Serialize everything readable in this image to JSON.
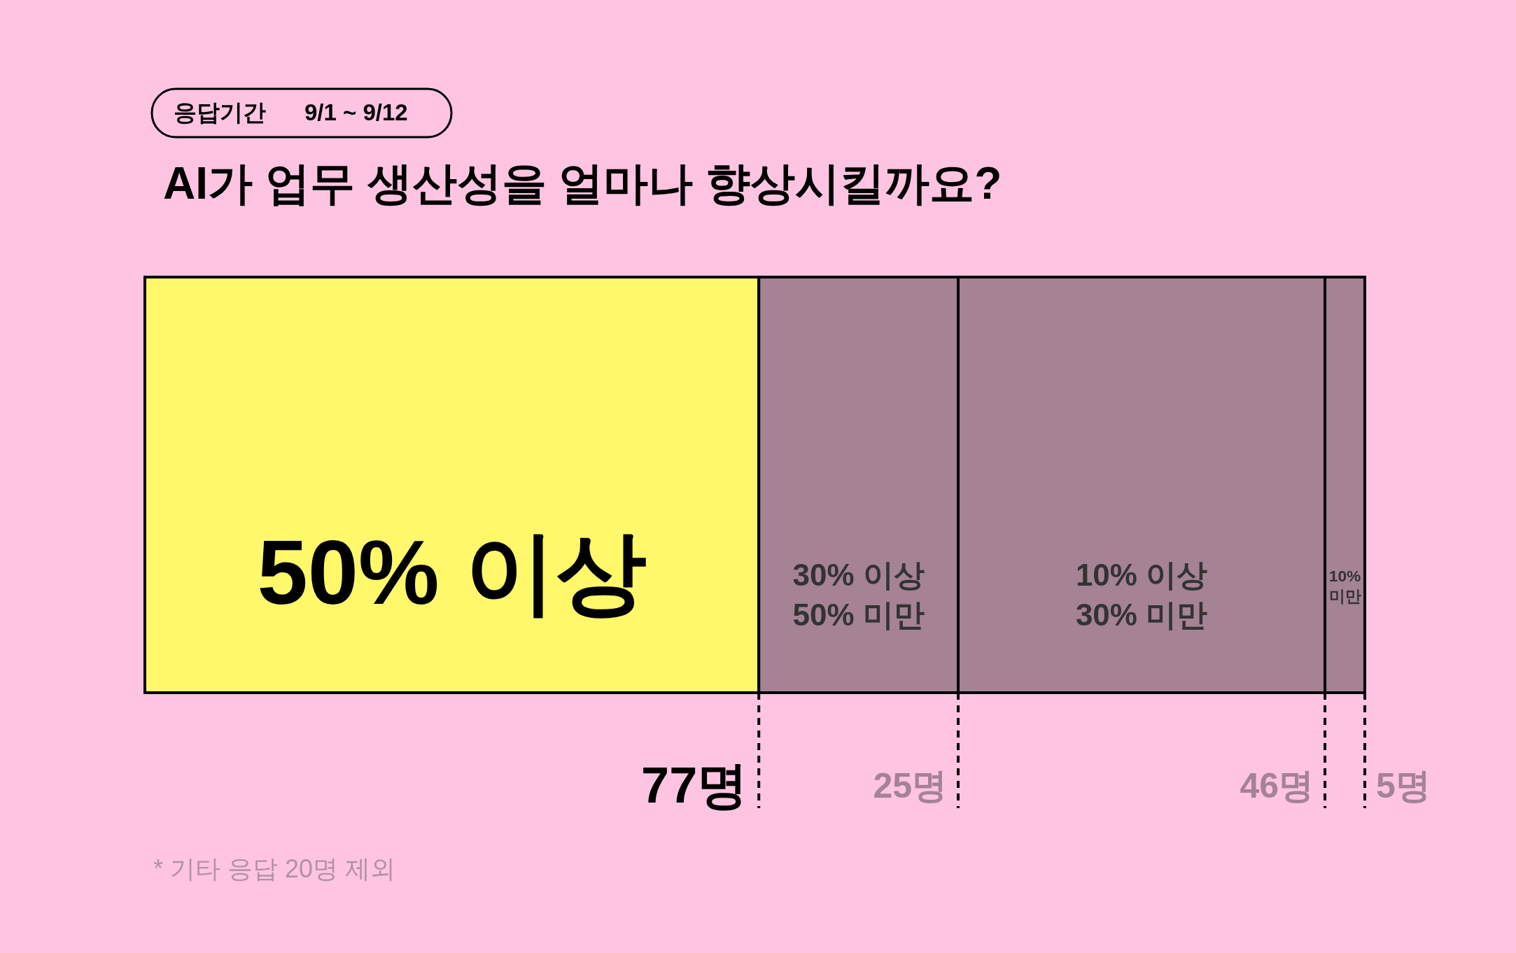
{
  "chart_data": {
    "type": "bar",
    "orientation": "horizontal",
    "stacked": true,
    "title": "AI가 업무 생산성을 얼마나 향상시킬까요?",
    "subtitle": "응답기간 9/1 ~ 9/12",
    "categories": [
      null
    ],
    "series": [
      {
        "name": "50% 이상",
        "color": "#fff86b",
        "values": [
          77
        ],
        "value_labels": [
          "77명"
        ]
      },
      {
        "name": "30% 이상\n50% 미만",
        "color": "#a58294",
        "values": [
          25
        ],
        "value_labels": [
          "25명"
        ]
      },
      {
        "name": "10% 이상\n30% 미만",
        "color": "#a58294",
        "values": [
          46
        ],
        "value_labels": [
          "46명"
        ]
      },
      {
        "name": "10%\n미만",
        "color": "#a58294",
        "values": [
          5
        ],
        "value_labels": [
          "5명"
        ]
      }
    ],
    "tick_labels": false,
    "annotations": [
      "* 기타 응답 20명 제외"
    ]
  }
}
